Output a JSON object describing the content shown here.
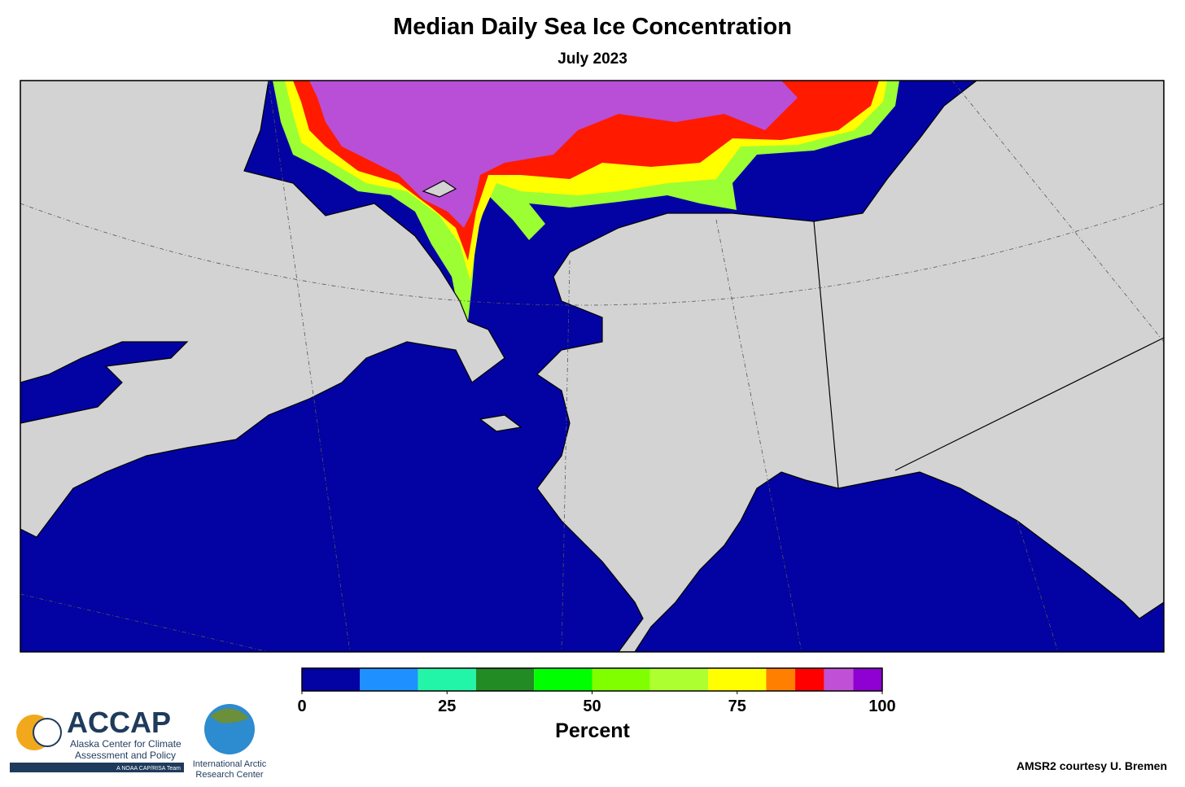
{
  "title": "Median Daily Sea Ice Concentration",
  "subtitle": "July 2023",
  "colorbar": {
    "bins": [
      0,
      10,
      20,
      30,
      40,
      50,
      60,
      70,
      80,
      85,
      90,
      95,
      100
    ],
    "colors": [
      "#0303a3",
      "#1e90ff",
      "#22f5a8",
      "#238b23",
      "#00ff00",
      "#80ff00",
      "#adff2f",
      "#ffff00",
      "#ff8000",
      "#ff0000",
      "#c050d5",
      "#8f00d2"
    ],
    "ticks": [
      0,
      25,
      50,
      75,
      100
    ],
    "label": "Percent"
  },
  "credit": "AMSR2 courtesy U. Bremen",
  "logos": {
    "accap": {
      "name": "ACCAP",
      "line1": "Alaska Center for Climate",
      "line2": "Assessment and Policy",
      "tag": "A NOAA CAP/RISA Team"
    },
    "iarc": {
      "line1": "International Arctic",
      "line2": "Research Center"
    }
  }
}
